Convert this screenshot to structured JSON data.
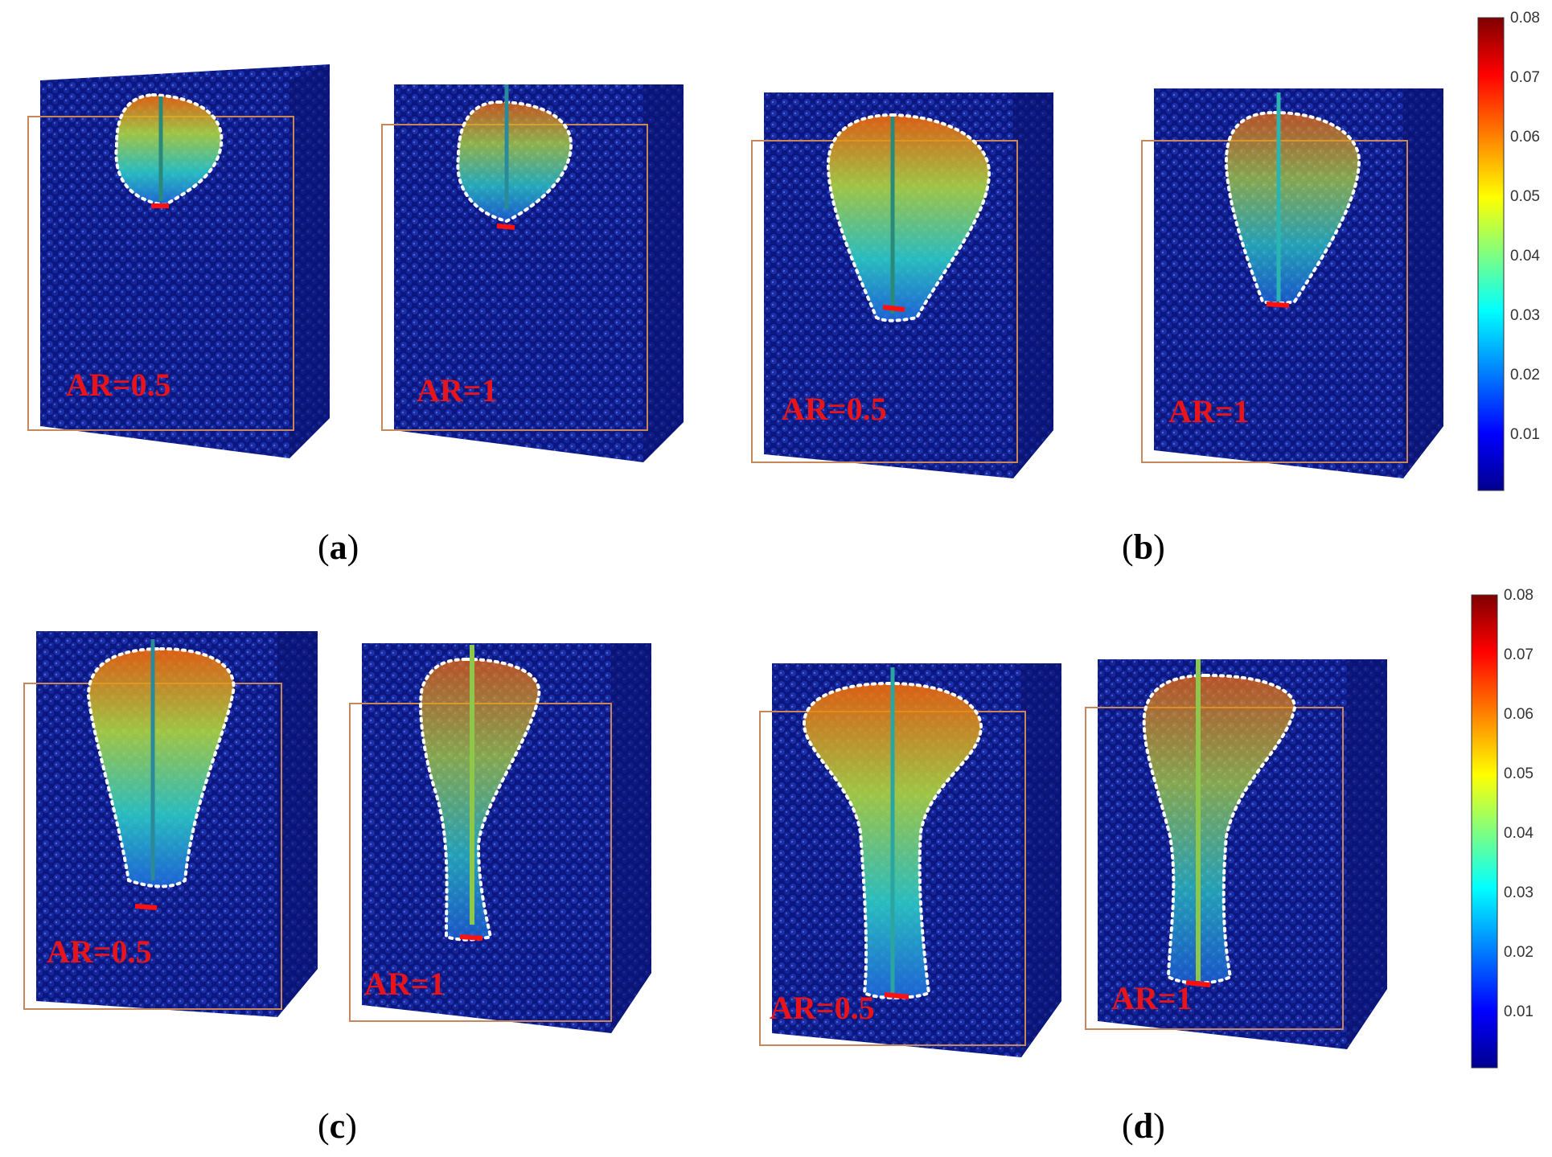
{
  "colors": {
    "background_particles": "#0c1a8c",
    "contour": "#ffffff",
    "frame": "#c8875a",
    "tip": "#ff1010",
    "label": "#e8141a"
  },
  "panels": [
    {
      "caption_letter": "a",
      "sims": [
        {
          "ar_label": "AR=0.5"
        },
        {
          "ar_label": "AR=1"
        }
      ]
    },
    {
      "caption_letter": "b",
      "sims": [
        {
          "ar_label": "AR=0.5"
        },
        {
          "ar_label": "AR=1"
        }
      ]
    },
    {
      "caption_letter": "c",
      "sims": [
        {
          "ar_label": "AR=0.5"
        },
        {
          "ar_label": "AR=1"
        }
      ]
    },
    {
      "caption_letter": "d",
      "sims": [
        {
          "ar_label": "AR=0.5"
        },
        {
          "ar_label": "AR=1"
        }
      ]
    }
  ],
  "colorbars": [
    {
      "ticks": [
        "0.08",
        "0.07",
        "0.06",
        "0.05",
        "0.04",
        "0.03",
        "0.02",
        "0.01"
      ],
      "colormap": [
        "#7f0000",
        "#ff0000",
        "#ff8000",
        "#ffff00",
        "#80ff80",
        "#00ffff",
        "#0080ff",
        "#0000ff",
        "#00008f"
      ]
    },
    {
      "ticks": [
        "0.08",
        "0.07",
        "0.06",
        "0.05",
        "0.04",
        "0.03",
        "0.02",
        "0.01"
      ],
      "colormap": [
        "#7f0000",
        "#ff0000",
        "#ff8000",
        "#ffff00",
        "#80ff80",
        "#00ffff",
        "#0080ff",
        "#0000ff",
        "#00008f"
      ]
    }
  ]
}
